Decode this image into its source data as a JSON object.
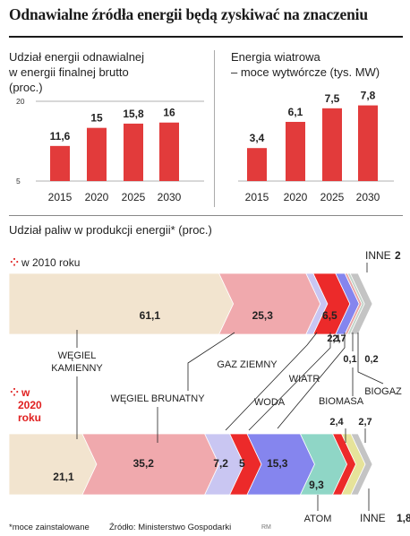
{
  "header": {
    "title": "Odnawialne źródła energii będą zyskiwać na znaczeniu"
  },
  "chart_data": [
    {
      "type": "bar",
      "title_line1": "Udział energii odnawialnej",
      "title_line2": "w energii finalnej brutto",
      "title_line3": "(proc.)",
      "categories": [
        "2015",
        "2020",
        "2025",
        "2030"
      ],
      "values": [
        11.6,
        15,
        15.8,
        16
      ],
      "labels": [
        "11,6",
        "15",
        "15,8",
        "16"
      ],
      "yticks": [
        "5",
        "20"
      ],
      "ylim": [
        5,
        20
      ],
      "color": "#e23b3b"
    },
    {
      "type": "bar",
      "title_line1": "Energia wiatrowa",
      "title_line2": "– moce wytwórcze (tys. MW)",
      "categories": [
        "2015",
        "2020",
        "2025",
        "2030"
      ],
      "values": [
        3.4,
        6.1,
        7.5,
        7.8
      ],
      "labels": [
        "3,4",
        "6,1",
        "7,5",
        "7,8"
      ],
      "ylim": [
        0,
        8.5
      ],
      "color": "#e23b3b"
    },
    {
      "type": "bar",
      "stacked": true,
      "title": "Udział paliw w produkcji energii* (proc.)",
      "rows": [
        {
          "name": "w 2010 roku",
          "segments": [
            {
              "fuel": "WĘGIEL KAMIENNY",
              "value": 61.1,
              "label": "61,1",
              "color": "#f2e4cf"
            },
            {
              "fuel": "WĘGIEL BRUNATNY",
              "value": 25.3,
              "label": "25,3",
              "color": "#f0a9ad"
            },
            {
              "fuel": "GAZ ZIEMNY",
              "value": 2.1,
              "label": "2,1",
              "color": "#c9c6f2"
            },
            {
              "fuel": "WODA",
              "value": 6.5,
              "label": "6,5",
              "color": "#ec2a2a"
            },
            {
              "fuel": "WIATR",
              "value": 2.7,
              "label": "2,7",
              "color": "#8585ee"
            },
            {
              "fuel": "BIOMASA",
              "value": 0.1,
              "label": "0,1",
              "color": "#e8a3a3"
            },
            {
              "fuel": "BIOGAZ",
              "value": 0.2,
              "label": "0,2",
              "color": "#c2d3c8"
            },
            {
              "fuel": "INNE",
              "value": 2,
              "label": "2",
              "color": "#c4c4c4"
            }
          ]
        },
        {
          "name": "w 2020 roku",
          "name_line1": "w",
          "name_line2": "2020",
          "name_line3": "roku",
          "segments": [
            {
              "fuel": "WĘGIEL KAMIENNY",
              "value": 21.1,
              "label": "21,1",
              "color": "#f2e4cf"
            },
            {
              "fuel": "WĘGIEL BRUNATNY",
              "value": 35.2,
              "label": "35,2",
              "color": "#f0a9ad"
            },
            {
              "fuel": "GAZ ZIEMNY",
              "value": 7.2,
              "label": "7,2",
              "color": "#c9c6f2"
            },
            {
              "fuel": "WODA",
              "value": 5,
              "label": "5",
              "color": "#ec2a2a"
            },
            {
              "fuel": "WIATR",
              "value": 15.3,
              "label": "15,3",
              "color": "#8585ee"
            },
            {
              "fuel": "ATOM",
              "value": 9.3,
              "label": "9,3",
              "color": "#8fd6c6"
            },
            {
              "fuel": "BIOMASA",
              "value": 2.4,
              "label": "2,4",
              "color": "#ec2a2a"
            },
            {
              "fuel": "BIOGAZ",
              "value": 2.7,
              "label": "2,7",
              "color": "#e6e39a"
            },
            {
              "fuel": "INNE",
              "value": 1.8,
              "label": "1,8",
              "color": "#c4c4c4"
            }
          ]
        }
      ],
      "legend_labels": {
        "wegiel_kamienny_1": "WĘGIEL",
        "wegiel_kamienny_2": "KAMIENNY",
        "wegiel_brunatny": "WĘGIEL BRUNATNY",
        "gaz_ziemny": "GAZ ZIEMNY",
        "woda": "WODA",
        "wiatr": "WIATR",
        "biomasa": "BIOMASA",
        "biogaz": "BIOGAZ",
        "atom": "ATOM",
        "inne": "INNE"
      }
    }
  ],
  "footer": {
    "note": "*moce zainstalowane",
    "source": "Źródło: Ministerstwo Gospodarki",
    "credit": "RM"
  }
}
